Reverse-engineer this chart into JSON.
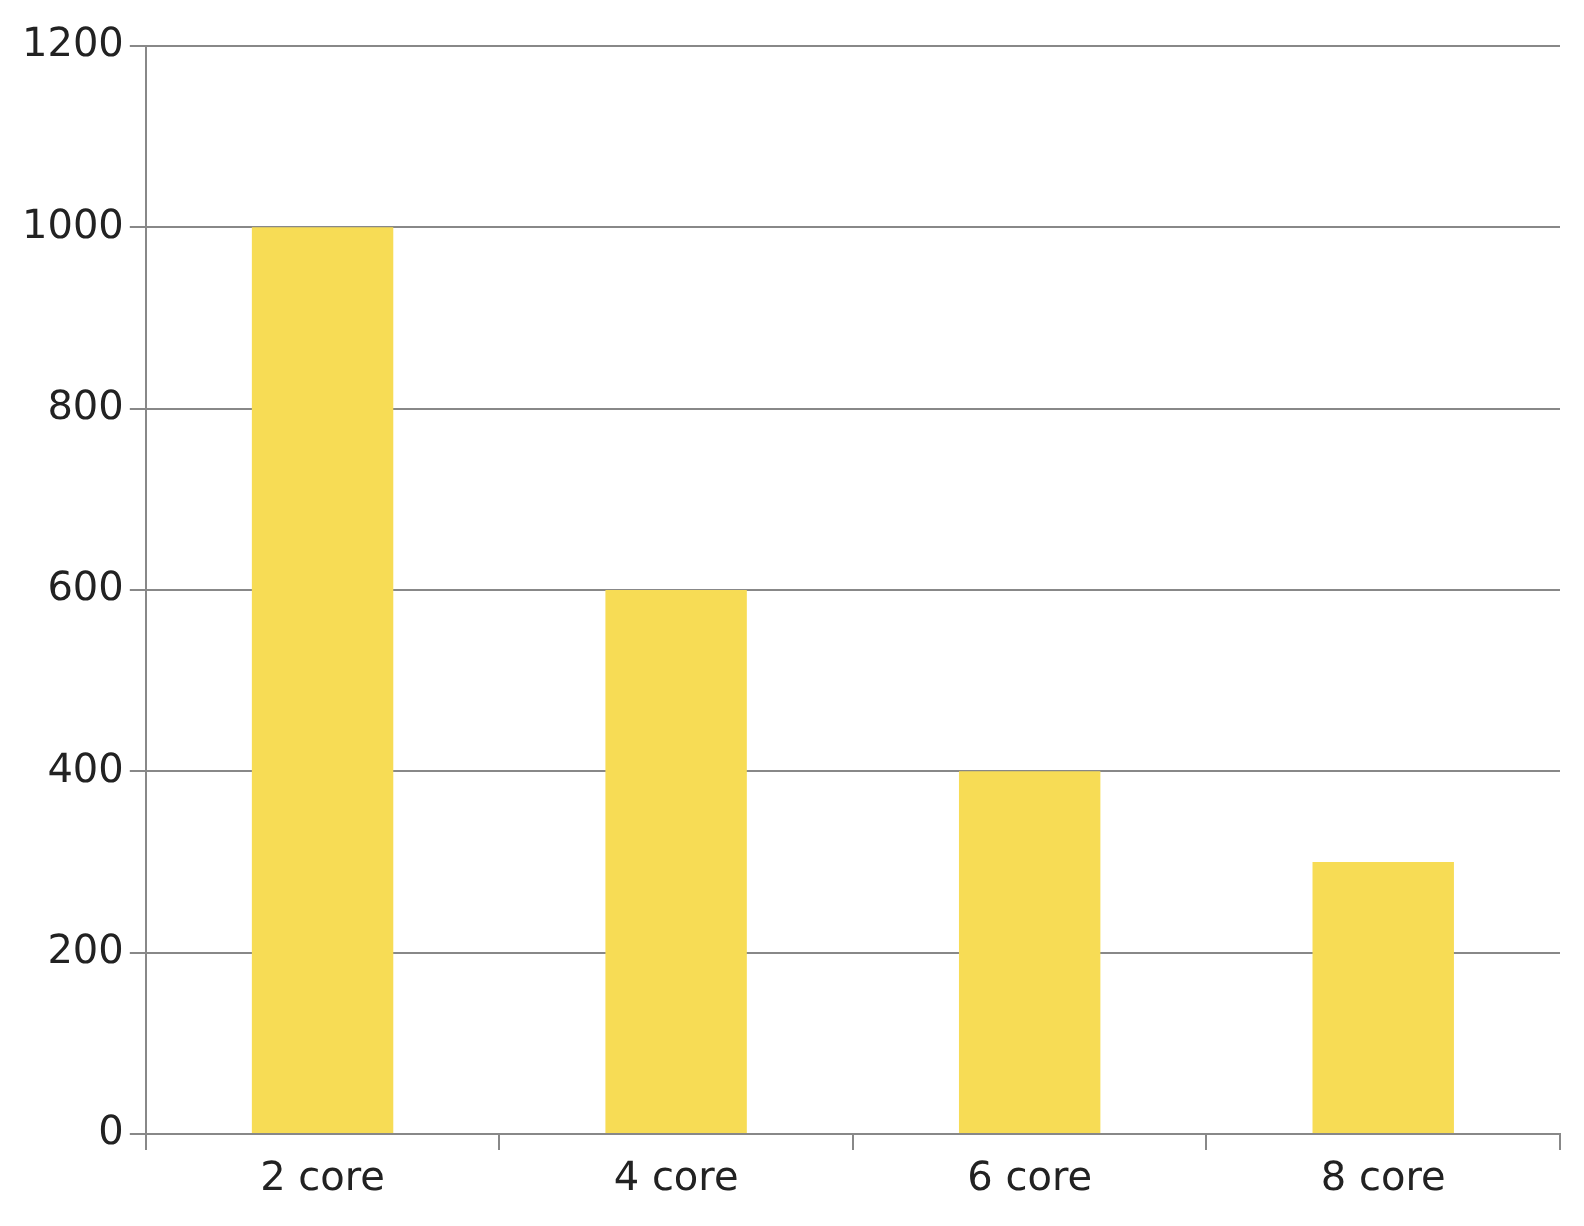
{
  "chart_data": {
    "type": "bar",
    "categories": [
      "2 core",
      "4 core",
      "6 core",
      "8 core"
    ],
    "series": [
      {
        "color": "#f7dc55",
        "values": [
          1000,
          600,
          400,
          300
        ]
      }
    ],
    "ylim": [
      0,
      1200
    ],
    "yticks": [
      0,
      200,
      400,
      600,
      800,
      1000,
      1200
    ],
    "grid": "y",
    "legend": false
  }
}
